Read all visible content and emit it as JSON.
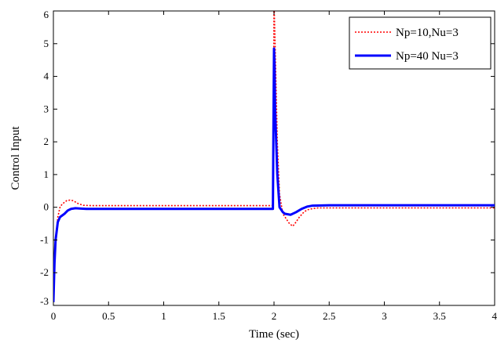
{
  "chart_data": {
    "type": "line",
    "title": "",
    "xlabel": "Time (sec)",
    "ylabel": "Control Input",
    "xlim": [
      0,
      4
    ],
    "ylim": [
      -3,
      6
    ],
    "xticks": [
      0,
      0.5,
      1,
      1.5,
      2,
      2.5,
      3,
      3.5,
      4
    ],
    "xtick_labels": [
      "0",
      "0.5",
      "1",
      "1.5",
      "2",
      "2.5",
      "3",
      "3.5",
      "4"
    ],
    "yticks": [
      -3,
      -2,
      -1,
      0,
      1,
      2,
      3,
      4,
      5,
      6
    ],
    "ytick_labels": [
      "-3",
      "-2",
      "-1",
      "0",
      "1",
      "2",
      "3",
      "4",
      "5",
      "6"
    ],
    "grid": false,
    "legend_position": "top-right",
    "series": [
      {
        "name": "Np=10,Nu=3",
        "color": "#ff0000",
        "style": "dotted",
        "x": [
          0,
          0.01,
          0.02,
          0.04,
          0.06,
          0.08,
          0.1,
          0.12,
          0.15,
          0.18,
          0.22,
          0.27,
          0.35,
          0.5,
          1.0,
          1.5,
          1.99,
          1.995,
          2.0,
          2.01,
          2.03,
          2.05,
          2.08,
          2.1,
          2.14,
          2.17,
          2.2,
          2.23,
          2.27,
          2.3,
          2.35,
          2.4,
          2.5,
          3.0,
          3.5,
          4.0
        ],
        "y": [
          -2.8,
          -1.6,
          -1.0,
          -0.3,
          0.0,
          0.1,
          0.15,
          0.2,
          0.22,
          0.2,
          0.12,
          0.06,
          0.05,
          0.05,
          0.05,
          0.05,
          0.05,
          3.0,
          6.3,
          5.0,
          2.0,
          0.4,
          -0.2,
          -0.3,
          -0.5,
          -0.58,
          -0.45,
          -0.3,
          -0.15,
          -0.08,
          -0.04,
          -0.02,
          -0.02,
          -0.02,
          -0.02,
          -0.02
        ]
      },
      {
        "name": "Np=40 Nu=3",
        "color": "#0000ff",
        "style": "solid",
        "x": [
          0,
          0.01,
          0.02,
          0.04,
          0.06,
          0.08,
          0.1,
          0.13,
          0.16,
          0.2,
          0.25,
          0.3,
          0.4,
          0.6,
          1.0,
          1.5,
          1.99,
          1.995,
          2.0,
          2.005,
          2.01,
          2.03,
          2.05,
          2.08,
          2.1,
          2.15,
          2.2,
          2.25,
          2.3,
          2.35,
          2.5,
          3.0,
          3.5,
          4.0
        ],
        "y": [
          -2.9,
          -1.7,
          -1.0,
          -0.45,
          -0.3,
          -0.25,
          -0.2,
          -0.1,
          -0.05,
          -0.03,
          -0.04,
          -0.05,
          -0.05,
          -0.05,
          -0.05,
          -0.05,
          -0.05,
          2.5,
          4.85,
          4.3,
          3.0,
          1.0,
          0.0,
          -0.15,
          -0.2,
          -0.23,
          -0.15,
          -0.05,
          0.02,
          0.05,
          0.06,
          0.06,
          0.06,
          0.06
        ]
      }
    ]
  }
}
